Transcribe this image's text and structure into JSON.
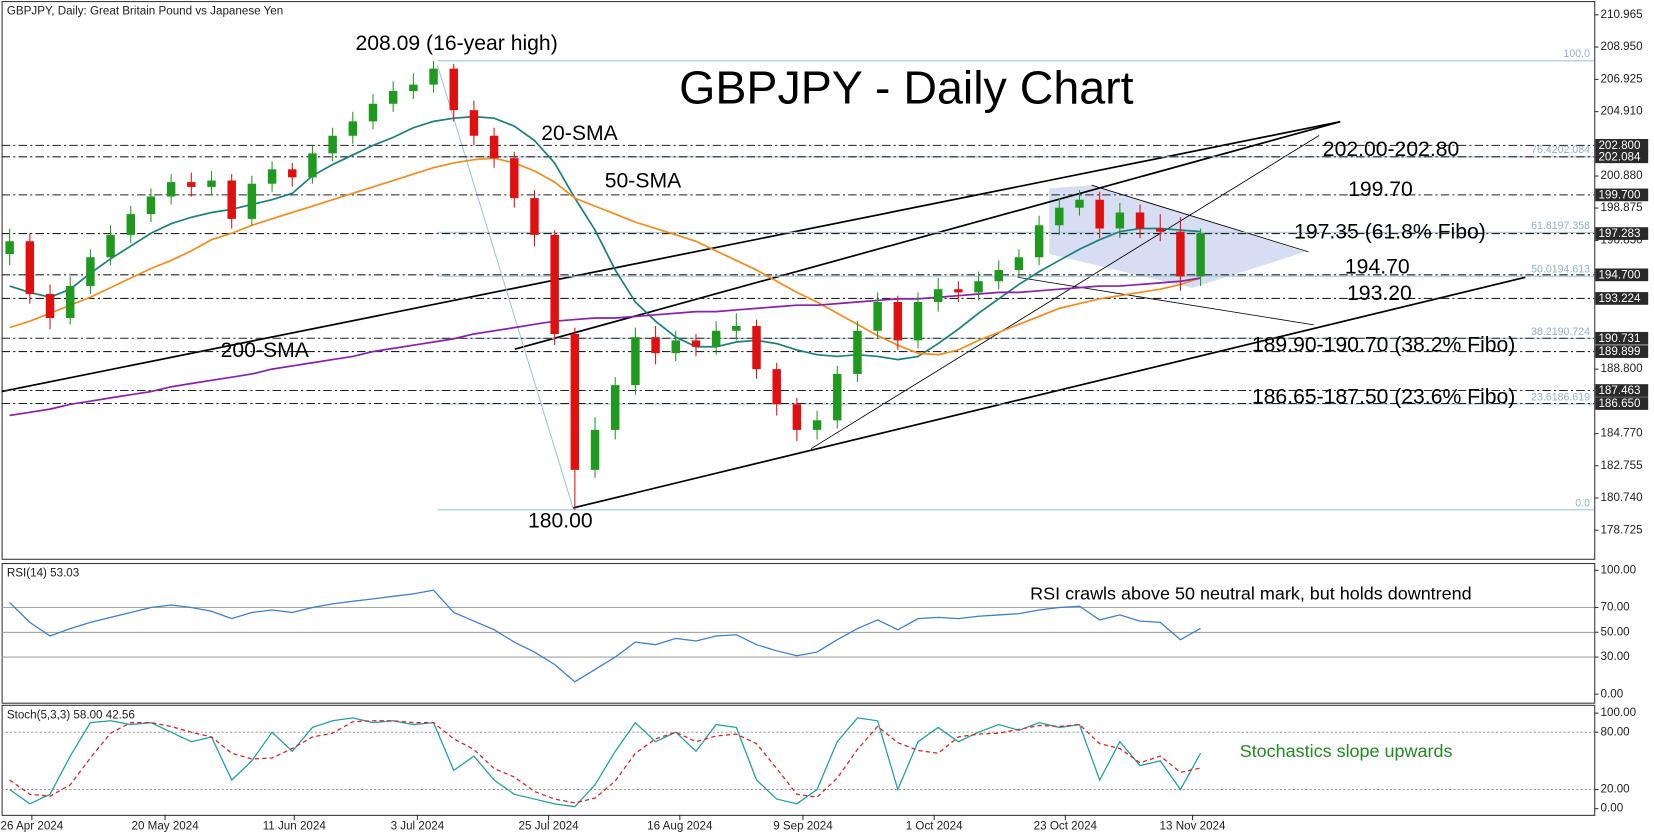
{
  "chart_data": [
    {
      "type": "candlestick",
      "header": "GBPJPY, Daily:  Great Britain Pound vs Japanese Yen",
      "title": "GBPJPY - Daily Chart",
      "xlim": [
        -0.4,
        78.5
      ],
      "xticks": [
        {
          "value": 1.1,
          "label": "26 Apr 2024"
        },
        {
          "value": 7.7,
          "label": "20 May 2024"
        },
        {
          "value": 14.1,
          "label": "11 Jun 2024"
        },
        {
          "value": 20.2,
          "label": "3 Jul 2024"
        },
        {
          "value": 26.7,
          "label": "25 Jul 2024"
        },
        {
          "value": 33.2,
          "label": "16 Aug 2024"
        },
        {
          "value": 39.3,
          "label": "9 Sep 2024"
        },
        {
          "value": 45.8,
          "label": "1 Oct 2024"
        },
        {
          "value": 52.3,
          "label": "23 Oct 2024"
        },
        {
          "value": 58.6,
          "label": "13 Nov 2024"
        }
      ],
      "ylim": [
        176.94,
        211.76
      ],
      "yticks": [
        210.965,
        {
          "value": 208.95,
          "label": "208.950"
        },
        206.925,
        {
          "value": 204.91,
          "label": "204.910"
        },
        {
          "value": 200.88,
          "label": "200.880"
        },
        198.875,
        {
          "value": 196.85,
          "label": "196.850"
        },
        {
          "value": 188.8,
          "label": "188.800"
        },
        {
          "value": 184.77,
          "label": "184.770"
        },
        182.755,
        {
          "value": 180.74,
          "label": "180.740"
        },
        178.725
      ],
      "levels": [
        {
          "value": 202.8,
          "label": "202.800"
        },
        {
          "value": 202.084,
          "label": "202.084"
        },
        {
          "value": 199.7,
          "label": "199.700"
        },
        {
          "value": 197.283,
          "label": "197.283"
        },
        {
          "value": 194.7,
          "label": "194.700"
        },
        {
          "value": 193.224,
          "label": "193.224"
        },
        {
          "value": 190.731,
          "label": "190.731"
        },
        {
          "value": 189.899,
          "label": "189.899"
        },
        {
          "value": 187.463,
          "label": "187.463"
        },
        {
          "value": 186.65,
          "label": "186.650"
        }
      ],
      "fibo": [
        {
          "price": 208.09,
          "label": "100.0"
        },
        {
          "price": 202.084,
          "label": "76.4202.084"
        },
        {
          "price": 197.358,
          "label": "61.8197.358"
        },
        {
          "price": 194.613,
          "label": "50.0194.613"
        },
        {
          "price": 190.724,
          "label": "38.2190.724"
        },
        {
          "price": 186.619,
          "label": "23.6186.619"
        },
        {
          "price": 180.0,
          "label": "0.0"
        }
      ],
      "up_color": "#1f9a1f",
      "down_color": "#e01010",
      "open": [
        196.0,
        196.8,
        193.5,
        192.0,
        194.0,
        195.8,
        197.2,
        198.5,
        199.6,
        200.5,
        200.2,
        200.6,
        198.2,
        200.4,
        201.3,
        200.8,
        202.3,
        203.4,
        204.3,
        205.4,
        206.2,
        206.6,
        207.6,
        205.0,
        203.4,
        202.0,
        199.5,
        197.2,
        191.0,
        182.5,
        185.0,
        187.8,
        190.8,
        189.8,
        190.6,
        190.2,
        191.2,
        191.5,
        188.8,
        186.6,
        185.0,
        185.6,
        188.5,
        191.2,
        193.0,
        190.6,
        193.0,
        193.8,
        193.6,
        194.3,
        195.0,
        195.8,
        197.8,
        198.9,
        199.4,
        197.6,
        198.6,
        197.6,
        197.4,
        194.6
      ],
      "high": [
        197.6,
        197.3,
        194.1,
        194.6,
        196.3,
        197.8,
        199.0,
        200.1,
        201.0,
        201.1,
        201.2,
        201.0,
        200.9,
        201.8,
        201.7,
        202.8,
        203.9,
        204.9,
        206.0,
        206.8,
        207.3,
        208.09,
        207.9,
        205.6,
        203.9,
        202.4,
        200.0,
        197.5,
        191.4,
        185.8,
        188.3,
        191.4,
        191.5,
        191.2,
        191.0,
        191.8,
        192.3,
        191.9,
        189.2,
        187.0,
        186.2,
        189.0,
        191.8,
        193.6,
        193.4,
        193.6,
        194.5,
        194.3,
        194.9,
        195.6,
        196.3,
        198.4,
        199.5,
        200.0,
        199.9,
        199.2,
        199.1,
        198.5,
        198.3,
        197.6
      ],
      "low": [
        195.3,
        192.9,
        191.3,
        191.6,
        193.5,
        195.3,
        196.7,
        198.0,
        199.1,
        199.6,
        199.7,
        197.6,
        197.8,
        199.9,
        200.2,
        200.4,
        201.8,
        202.9,
        203.8,
        204.9,
        205.7,
        206.1,
        204.3,
        202.8,
        201.4,
        198.9,
        196.5,
        190.3,
        180.0,
        182.0,
        184.4,
        187.2,
        189.1,
        189.3,
        189.6,
        189.7,
        190.6,
        188.2,
        185.9,
        184.3,
        184.4,
        185.1,
        188.0,
        190.7,
        190.0,
        190.1,
        192.4,
        193.0,
        193.1,
        193.8,
        194.5,
        195.3,
        197.2,
        198.4,
        197.0,
        197.0,
        197.0,
        196.8,
        193.7,
        194.0
      ],
      "close": [
        196.8,
        193.5,
        192.0,
        194.0,
        195.8,
        197.2,
        198.5,
        199.6,
        200.5,
        200.2,
        200.6,
        198.2,
        200.4,
        201.3,
        200.8,
        202.3,
        203.4,
        204.3,
        205.4,
        206.2,
        206.6,
        207.6,
        205.0,
        203.4,
        202.0,
        199.5,
        197.2,
        191.0,
        182.5,
        185.0,
        187.8,
        190.8,
        189.8,
        190.6,
        190.2,
        191.2,
        191.5,
        188.8,
        186.6,
        185.0,
        185.6,
        188.5,
        191.2,
        193.0,
        190.6,
        193.0,
        193.8,
        193.6,
        194.3,
        195.0,
        195.8,
        197.8,
        198.9,
        199.4,
        197.6,
        198.6,
        197.6,
        197.4,
        194.6,
        197.3
      ],
      "series": [
        {
          "name": "20-SMA",
          "color": "#1a7f7f",
          "values": [
            194.0,
            193.6,
            193.3,
            193.8,
            194.8,
            195.7,
            196.5,
            197.3,
            197.9,
            198.3,
            198.6,
            198.8,
            199.1,
            199.4,
            199.8,
            200.9,
            201.6,
            202.2,
            202.8,
            203.3,
            203.9,
            204.3,
            204.5,
            204.6,
            204.5,
            204.0,
            203.1,
            201.7,
            199.5,
            197.5,
            195.0,
            193.0,
            191.8,
            190.8,
            190.2,
            190.2,
            190.5,
            190.6,
            190.4,
            190.0,
            189.7,
            189.6,
            189.7,
            189.6,
            189.4,
            189.6,
            190.4,
            191.3,
            192.3,
            193.2,
            194.1,
            194.9,
            195.6,
            196.3,
            196.9,
            197.4,
            197.6,
            197.6,
            197.5,
            197.4
          ]
        },
        {
          "name": "50-SMA",
          "color": "#f28c1a",
          "values": [
            191.4,
            191.8,
            192.3,
            192.8,
            193.3,
            193.9,
            194.5,
            195.1,
            195.6,
            196.2,
            196.9,
            197.3,
            197.8,
            198.2,
            198.6,
            199.0,
            199.4,
            199.8,
            200.2,
            200.6,
            201.0,
            201.4,
            201.7,
            201.9,
            202.0,
            201.7,
            201.2,
            200.5,
            199.5,
            199.0,
            198.5,
            198.0,
            197.6,
            197.2,
            196.8,
            196.2,
            195.6,
            195.0,
            194.3,
            193.6,
            193.0,
            192.3,
            191.6,
            190.9,
            190.3,
            189.8,
            189.7,
            190.0,
            190.6,
            191.1,
            191.6,
            192.1,
            192.6,
            192.9,
            193.2,
            193.4,
            193.6,
            193.8,
            194.1,
            194.5
          ]
        },
        {
          "name": "200-SMA",
          "color": "#8a1fb0",
          "values": [
            185.9,
            186.1,
            186.3,
            186.6,
            186.8,
            187.0,
            187.2,
            187.4,
            187.7,
            187.9,
            188.1,
            188.3,
            188.5,
            188.8,
            189.0,
            189.2,
            189.4,
            189.6,
            189.9,
            190.1,
            190.3,
            190.5,
            190.7,
            191.0,
            191.2,
            191.4,
            191.6,
            191.8,
            191.9,
            192.0,
            192.0,
            192.1,
            192.2,
            192.3,
            192.4,
            192.4,
            192.5,
            192.6,
            192.7,
            192.8,
            192.8,
            192.9,
            193.0,
            193.1,
            193.2,
            193.2,
            193.3,
            193.4,
            193.5,
            193.6,
            193.6,
            193.7,
            193.8,
            193.9,
            194.0,
            194.0,
            194.1,
            194.2,
            194.3,
            194.5
          ]
        }
      ],
      "annotations": [
        {
          "text": "208.09 (16-year high)",
          "color": "#000000"
        },
        {
          "text": "202.00-202.80",
          "color": "#e01010"
        },
        {
          "text": "199.70",
          "color": "#e01010"
        },
        {
          "text": "197.35 (61.8% Fibo)",
          "color": "#e01010"
        },
        {
          "text": "194.70",
          "color": "#1f8a1f"
        },
        {
          "text": "193.20",
          "color": "#1f8a1f"
        },
        {
          "text": "189.90-190.70 (38.2% Fibo)",
          "color": "#1f8a1f"
        },
        {
          "text": "186.65-187.50 (23.6% Fibo)",
          "color": "#1f8a1f"
        },
        {
          "text": "180.00",
          "color": "#000000"
        }
      ]
    },
    {
      "type": "line",
      "header": "RSI(14) 53.03",
      "note": "RSI crawls above 50 neutral mark, but holds downtrend",
      "ylim": [
        -7.7,
        105.1
      ],
      "yticks": [
        {
          "value": 100,
          "label": "100.00"
        },
        {
          "value": 70,
          "label": "70.00"
        },
        {
          "value": 50,
          "label": "50.00"
        },
        {
          "value": 30,
          "label": "30.00"
        },
        {
          "value": 0,
          "label": "0.00"
        }
      ],
      "hlines": [
        70,
        50,
        30
      ],
      "series": [
        {
          "color": "#3a7fd0",
          "values": [
            74,
            58,
            47,
            53,
            58,
            62,
            66,
            70,
            72,
            70,
            67,
            61,
            66,
            68,
            66,
            70,
            73,
            75,
            77,
            79,
            81,
            84,
            66,
            59,
            52,
            42,
            34,
            24,
            10,
            20,
            30,
            42,
            40,
            45,
            43,
            47,
            48,
            40,
            35,
            31,
            34,
            44,
            53,
            60,
            52,
            61,
            62,
            61,
            63,
            64,
            65,
            68,
            70,
            71,
            60,
            64,
            59,
            58,
            44,
            53.03
          ]
        }
      ]
    },
    {
      "type": "line",
      "header": "Stoch(5,3,3) 58.00 42.56",
      "note": "Stochastics slope upwards",
      "ylim": [
        -6.5,
        107.6
      ],
      "yticks": [
        {
          "value": 100,
          "label": "100.00"
        },
        {
          "value": 80,
          "label": "80.00"
        },
        {
          "value": 20,
          "label": "20.00"
        },
        {
          "value": 0,
          "label": "0.00"
        }
      ],
      "hlines": [
        80,
        20
      ],
      "series": [
        {
          "color": "#20a0a0",
          "style": "solid",
          "values": [
            20,
            5,
            15,
            55,
            90,
            92,
            88,
            90,
            80,
            70,
            75,
            30,
            50,
            80,
            60,
            85,
            92,
            95,
            90,
            92,
            88,
            90,
            40,
            55,
            30,
            15,
            10,
            5,
            2,
            25,
            60,
            90,
            70,
            80,
            60,
            88,
            85,
            30,
            10,
            5,
            20,
            70,
            95,
            92,
            20,
            70,
            85,
            70,
            80,
            88,
            82,
            90,
            85,
            88,
            30,
            70,
            45,
            50,
            20,
            58.0
          ]
        },
        {
          "color": "#e02020",
          "style": "dashed",
          "values": [
            30,
            15,
            13,
            25,
            53,
            79,
            90,
            90,
            86,
            80,
            75,
            58,
            52,
            53,
            63,
            75,
            79,
            91,
            92,
            92,
            90,
            90,
            73,
            62,
            42,
            33,
            18,
            10,
            6,
            11,
            29,
            58,
            73,
            80,
            70,
            76,
            78,
            68,
            42,
            15,
            12,
            32,
            62,
            86,
            69,
            61,
            58,
            75,
            78,
            79,
            83,
            87,
            86,
            88,
            68,
            63,
            48,
            55,
            38,
            42.56
          ]
        }
      ]
    }
  ]
}
